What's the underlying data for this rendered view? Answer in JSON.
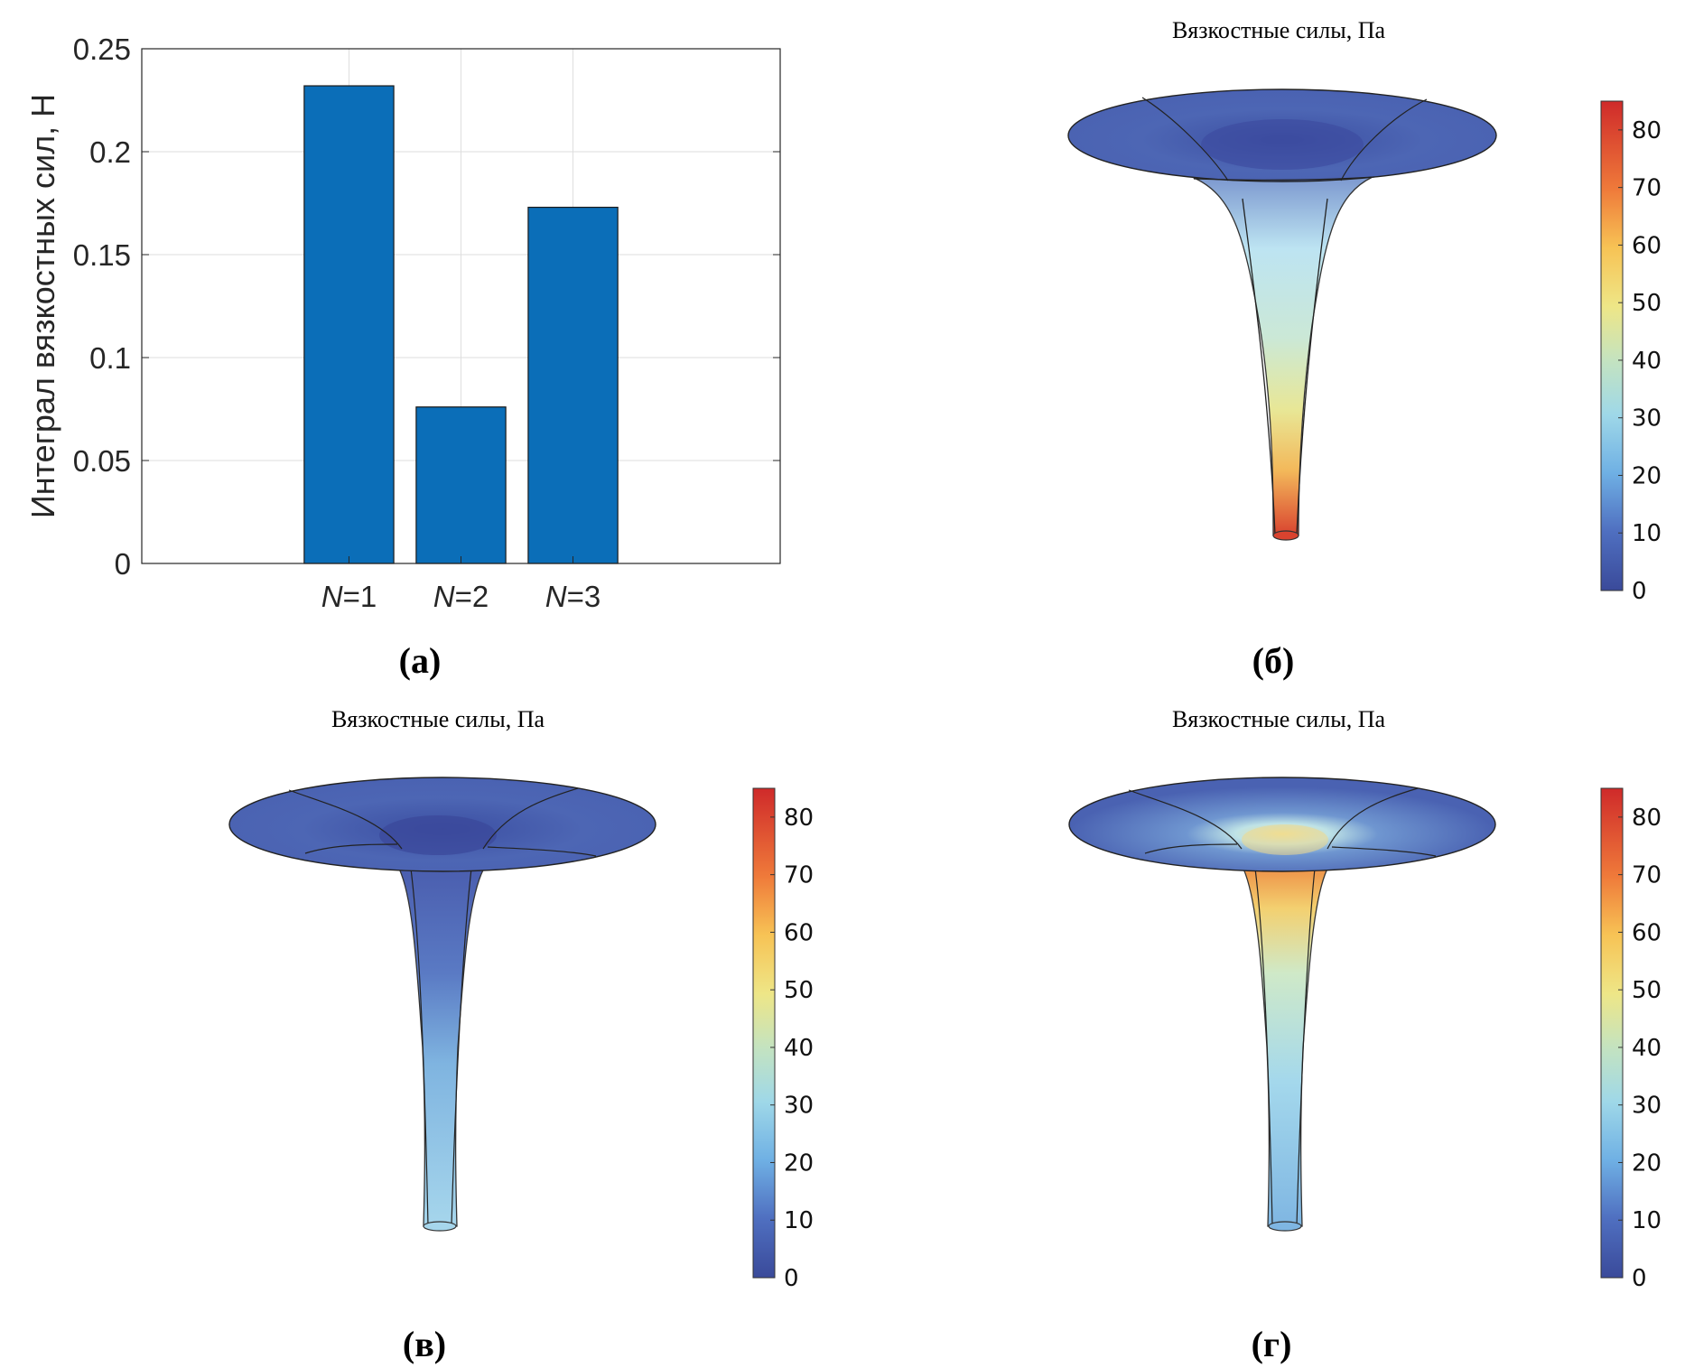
{
  "chart_data": [
    {
      "type": "bar",
      "panel_label": "(а)",
      "categories": [
        "N=1",
        "N=2",
        "N=3"
      ],
      "category_parts": [
        [
          "N",
          "=1"
        ],
        [
          "N",
          "=2"
        ],
        [
          "N",
          "=3"
        ]
      ],
      "values": [
        0.232,
        0.076,
        0.173
      ],
      "xlabel": "",
      "ylabel": "Интеграл вязкостных сил, Н",
      "ylim": [
        0,
        0.25
      ],
      "yticks": [
        "0",
        "0.05",
        "0.1",
        "0.15",
        "0.2",
        "0.25"
      ],
      "grid": true,
      "bar_color": "#0b6eb8"
    },
    {
      "type": "heatmap",
      "panel_label": "(б)",
      "title": "Вязкостные силы, Па",
      "colorbar_range": [
        0,
        85
      ],
      "colorbar_ticks": [
        "0",
        "10",
        "20",
        "30",
        "40",
        "50",
        "60",
        "70",
        "80"
      ],
      "colormap": "rainbow"
    },
    {
      "type": "heatmap",
      "panel_label": "(в)",
      "title": "Вязкостные силы, Па",
      "colorbar_range": [
        0,
        85
      ],
      "colorbar_ticks": [
        "0",
        "10",
        "20",
        "30",
        "40",
        "50",
        "60",
        "70",
        "80"
      ],
      "colormap": "rainbow"
    },
    {
      "type": "heatmap",
      "panel_label": "(г)",
      "title": "Вязкостные силы, Па",
      "colorbar_range": [
        0,
        85
      ],
      "colorbar_ticks": [
        "0",
        "10",
        "20",
        "30",
        "40",
        "50",
        "60",
        "70",
        "80"
      ],
      "colormap": "rainbow"
    }
  ]
}
